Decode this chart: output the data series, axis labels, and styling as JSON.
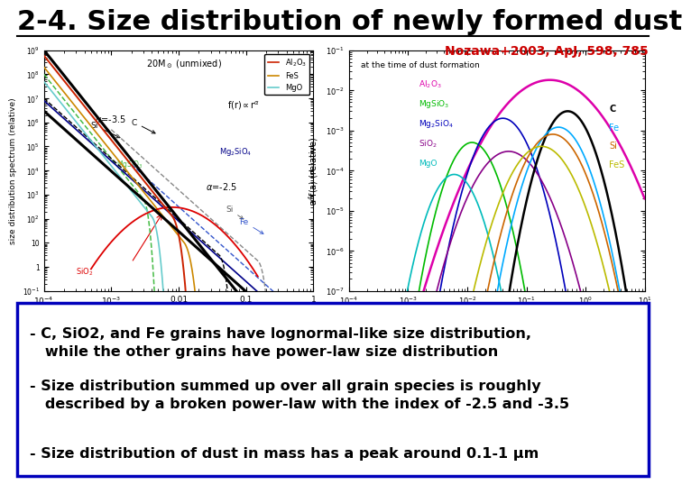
{
  "title": "2-4. Size distribution of newly formed dust",
  "title_color": "#000000",
  "reference": "Nozawa+2003, ApJ, 598, 785",
  "reference_color": "#cc0000",
  "bg_color": "#ffffff",
  "bullet_points": [
    "- C, SiO2, and Fe grains have lognormal-like size distribution,\n   while the other grains have power-law size distribution",
    "- Size distribution summed up over all grain species is roughly\n   described by a broken power-law with the index of -2.5 and -3.5",
    "- Size distribution of dust in mass has a peak around 0.1-1 μm"
  ],
  "box_border_color": "#0000cc",
  "title_fontsize": 22,
  "ref_fontsize": 10,
  "bullet_fontsize": 11.5
}
